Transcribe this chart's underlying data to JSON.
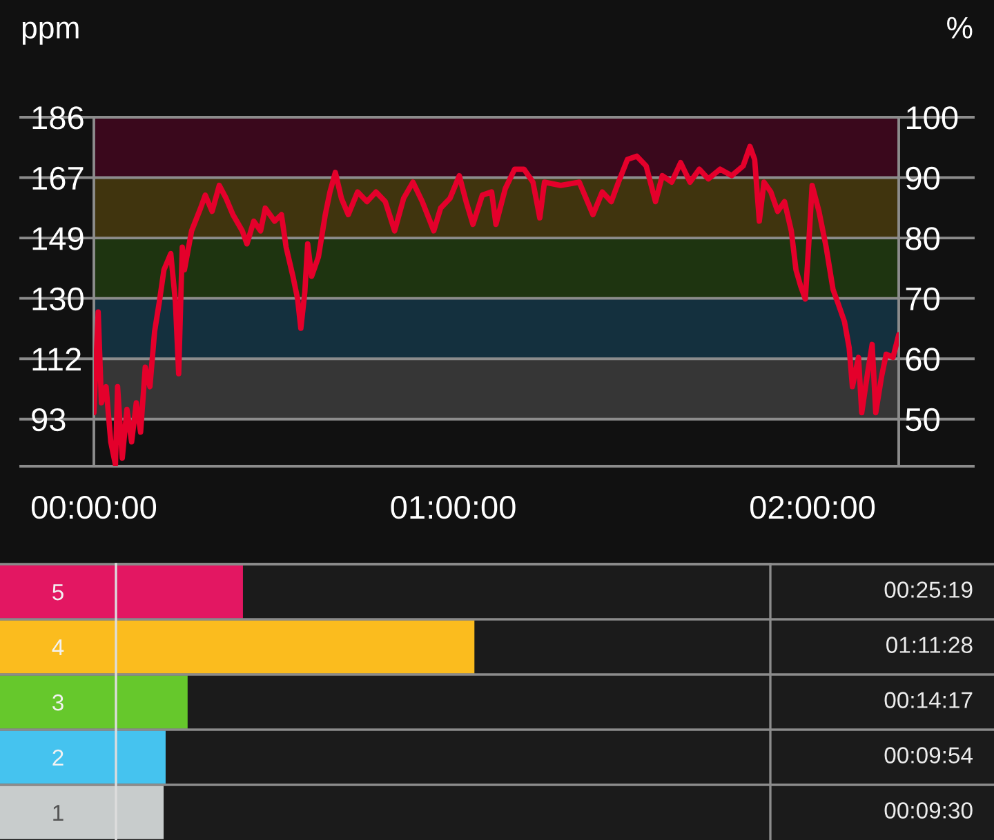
{
  "chart_data": [
    {
      "type": "line",
      "ylabel": "ppm",
      "y2label": "%",
      "x": [
        0,
        0.012,
        0.021,
        0.034,
        0.047,
        0.06,
        0.066,
        0.079,
        0.092,
        0.105,
        0.118,
        0.13,
        0.143,
        0.156,
        0.169,
        0.182,
        0.195,
        0.214,
        0.227,
        0.236,
        0.246,
        0.252,
        0.272,
        0.297,
        0.31,
        0.329,
        0.349,
        0.368,
        0.387,
        0.413,
        0.426,
        0.445,
        0.464,
        0.477,
        0.503,
        0.522,
        0.535,
        0.554,
        0.567,
        0.576,
        0.587,
        0.595,
        0.606,
        0.625,
        0.644,
        0.657,
        0.672,
        0.689,
        0.708,
        0.734,
        0.76,
        0.785,
        0.811,
        0.837,
        0.862,
        0.888,
        0.914,
        0.946,
        0.965,
        0.991,
        1.017,
        1.036,
        1.055,
        1.081,
        1.107,
        1.119,
        1.145,
        1.171,
        1.197,
        1.222,
        1.241,
        1.254,
        1.299,
        1.351,
        1.389,
        1.415,
        1.44,
        1.46,
        1.485,
        1.511,
        1.537,
        1.563,
        1.582,
        1.608,
        1.633,
        1.659,
        1.685,
        1.71,
        1.743,
        1.775,
        1.807,
        1.826,
        1.839,
        1.852,
        1.865,
        1.884,
        1.903,
        1.922,
        1.941,
        1.954,
        1.967,
        1.98,
        1.989,
        1.999,
        2.018,
        2.038,
        2.057,
        2.07,
        2.089,
        2.102,
        2.111,
        2.128,
        2.137,
        2.153,
        2.166,
        2.176,
        2.192,
        2.205,
        2.224,
        2.24
      ],
      "series": [
        {
          "color": "#e4002b",
          "values": [
            95,
            126,
            98,
            103,
            86,
            79,
            103,
            81,
            96,
            86,
            98,
            89,
            109,
            103,
            120,
            129,
            139,
            144,
            129,
            107,
            146,
            139,
            151,
            158,
            162,
            157,
            165,
            161,
            156,
            151,
            147,
            154,
            151,
            158,
            154,
            156,
            146,
            137,
            130,
            121,
            132,
            147,
            137,
            143,
            156,
            163,
            169,
            161,
            156,
            163,
            160,
            163,
            160,
            151,
            161,
            166,
            160,
            151,
            158,
            161,
            168,
            160,
            153,
            162,
            163,
            153,
            164,
            170,
            170,
            166,
            155,
            166,
            165,
            166,
            156,
            163,
            160,
            166,
            173,
            174,
            171,
            160,
            168,
            166,
            172,
            166,
            170,
            167,
            170,
            168,
            171,
            177,
            173,
            154,
            166,
            163,
            157,
            160,
            151,
            139,
            134,
            130,
            146,
            165,
            157,
            146,
            133,
            129,
            123,
            115,
            103,
            112,
            95,
            107,
            116,
            95,
            106,
            113,
            112,
            119
          ]
        }
      ],
      "xlim": [
        0,
        2.24
      ],
      "xticks": [
        {
          "value": 0,
          "label": "00:00:00"
        },
        {
          "value": 1,
          "label": "01:00:00"
        },
        {
          "value": 2,
          "label": "02:00:00"
        }
      ],
      "ylim": [
        78.5,
        186
      ],
      "yticks": [
        186,
        {
          "value": 167.4,
          "label": "167"
        },
        {
          "value": 148.8,
          "label": "149"
        },
        {
          "value": 130.2,
          "label": "130"
        },
        {
          "value": 111.6,
          "label": "112"
        },
        93
      ],
      "y2lim": [
        42.2,
        100
      ],
      "y2ticks": [
        100,
        90,
        80,
        70,
        60,
        50
      ],
      "bands": [
        {
          "axis": "y2",
          "from": 90,
          "to": 100,
          "color": "#3a081c"
        },
        {
          "axis": "y2",
          "from": 80,
          "to": 90,
          "color": "#40340e"
        },
        {
          "axis": "y2",
          "from": 70,
          "to": 80,
          "color": "#1e3410"
        },
        {
          "axis": "y2",
          "from": 60,
          "to": 70,
          "color": "#14303e"
        },
        {
          "axis": "y2",
          "from": 50,
          "to": 60,
          "color": "#363636"
        }
      ],
      "grid": "y"
    },
    {
      "type": "bar",
      "orientation": "horizontal",
      "categories": [
        "5",
        "4",
        "3",
        "2",
        "1"
      ],
      "values": [
        1519,
        4288,
        857,
        594,
        570
      ],
      "colors": [
        "#e31762",
        "#fbbc1e",
        "#66c82c",
        "#45c3ef",
        "#c8cccc"
      ],
      "value_labels": [
        "00:25:19",
        "01:11:28",
        "00:14:17",
        "00:09:54",
        "00:09:30"
      ],
      "tick_labels": "y"
    }
  ]
}
